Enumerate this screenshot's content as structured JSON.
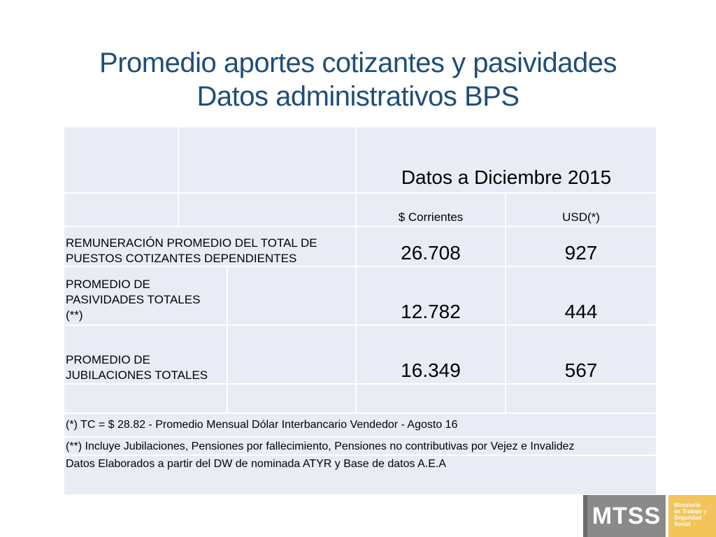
{
  "slide": {
    "title_line1": "Promedio aportes cotizantes y pasividades",
    "title_line2": "Datos administrativos BPS"
  },
  "table": {
    "header": "Datos a Diciembre 2015",
    "col_corrientes": "$ Corrientes",
    "col_usd": "USD(*)",
    "rows": [
      {
        "label": "REMUNERACIÓN PROMEDIO DEL TOTAL DE PUESTOS COTIZANTES DEPENDIENTES",
        "corrientes": "26.708",
        "usd": "927"
      },
      {
        "label": "PROMEDIO DE PASIVIDADES TOTALES (**)",
        "corrientes": "12.782",
        "usd": "444"
      },
      {
        "label": "PROMEDIO DE JUBILACIONES TOTALES",
        "corrientes": "16.349",
        "usd": "567"
      }
    ],
    "notes": [
      "(*) TC = $ 28.82 - Promedio Mensual Dólar Interbancario Vendedor - Agosto 16",
      "(**) Incluye Jubilaciones, Pensiones por fallecimiento, Pensiones no contributivas por  Vejez e Invalidez",
      "Datos Elaborados a partir del DW de nominada ATYR y Base de datos A.E.A"
    ]
  },
  "logo": {
    "abbr": "MTSS",
    "line1": "Ministerio",
    "line2": "de Trabajo y",
    "line3": "Seguridad",
    "line4": "Social"
  }
}
